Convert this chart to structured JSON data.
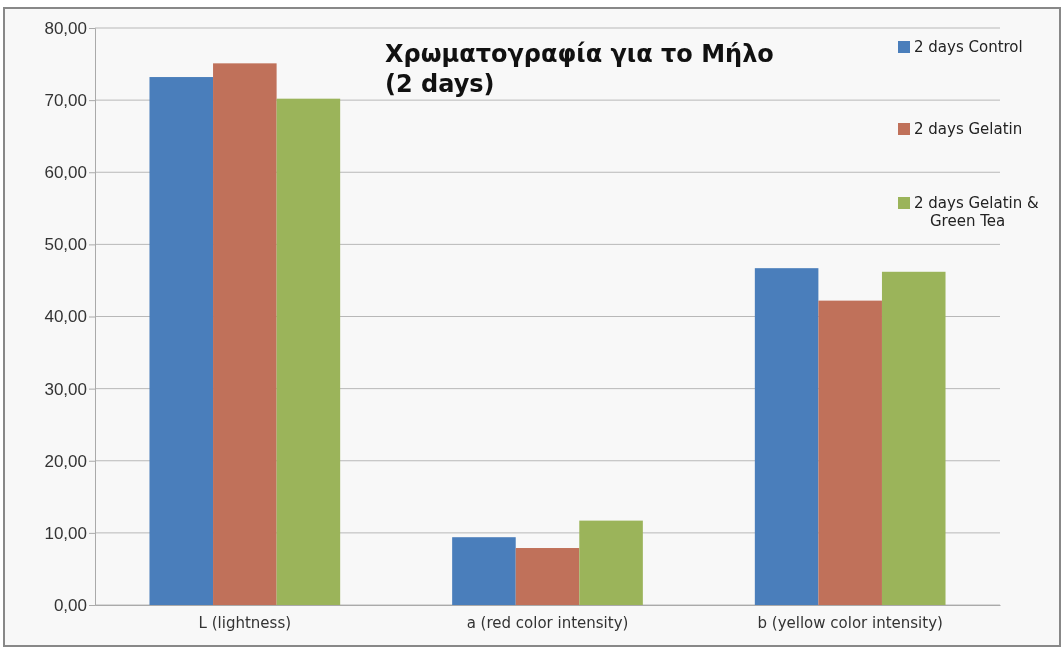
{
  "chart_data": {
    "type": "bar",
    "title": "Χρωματογραφία για το Μήλο (2 days)",
    "categories": [
      "L (lightness)",
      "a (red color intensity)",
      "b (yellow color intensity)"
    ],
    "series": [
      {
        "name": "2 days Control",
        "color": "#4a7ebb",
        "values": [
          73.2,
          9.4,
          46.7
        ]
      },
      {
        "name": "2 days Gelatin",
        "color": "#c0715a",
        "values": [
          75.1,
          7.9,
          42.2
        ]
      },
      {
        "name": "2 days Gelatin & Green Tea",
        "color": "#9bb45a",
        "values": [
          70.2,
          11.7,
          46.2
        ]
      }
    ],
    "ylim": [
      0,
      80
    ],
    "yticks": [
      {
        "value": 0,
        "label": "0,00"
      },
      {
        "value": 10,
        "label": "10,00"
      },
      {
        "value": 20,
        "label": "20,00"
      },
      {
        "value": 30,
        "label": "30,00"
      },
      {
        "value": 40,
        "label": "40,00"
      },
      {
        "value": 50,
        "label": "50,00"
      },
      {
        "value": 60,
        "label": "60,00"
      },
      {
        "value": 70,
        "label": "70,00"
      },
      {
        "value": 80,
        "label": "80,00"
      }
    ],
    "grid": "y",
    "legend": "top right"
  }
}
